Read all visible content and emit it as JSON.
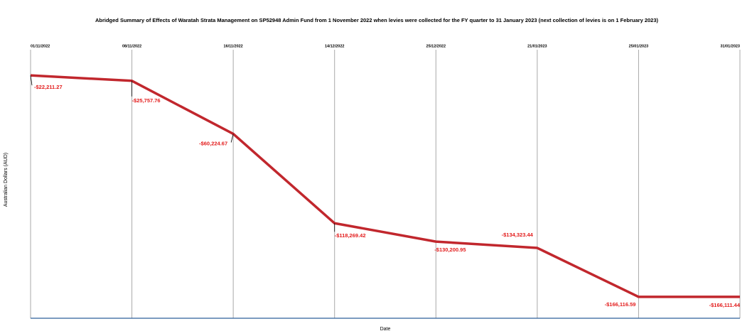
{
  "chart_data": {
    "type": "line",
    "title": "Abridged Summary of Effects of Waratah Strata Management on SP52948 Admin Fund from 1 November 2022 when levies were collected for the FY quarter to 31 January 2023 (next collection of levies is on 1 February 2023)",
    "x_label": "Date",
    "y_label": "Australian Dollars (AUD)",
    "categories": [
      "01/11/2022",
      "08/11/2022",
      "16/11/2022",
      "14/12/2022",
      "25/12/2022",
      "21/01/2023",
      "25/01/2023",
      "31/01/2023"
    ],
    "series": [
      {
        "color": "#c1272d",
        "values": [
          -22211.27,
          -25757.76,
          -60224.67,
          -118269.42,
          -130200.95,
          -134323.44,
          -166116.59,
          -166111.44
        ],
        "value_labels": [
          "-$22,211.27",
          "-$25,757.76",
          "-$60,224.67",
          "-$118,269.42",
          "-$130,200.95",
          "-$134,323.44",
          "-$166,116.59",
          "-$166,111.44"
        ]
      }
    ],
    "ylim": [
      -180000,
      0
    ],
    "grid": true
  }
}
